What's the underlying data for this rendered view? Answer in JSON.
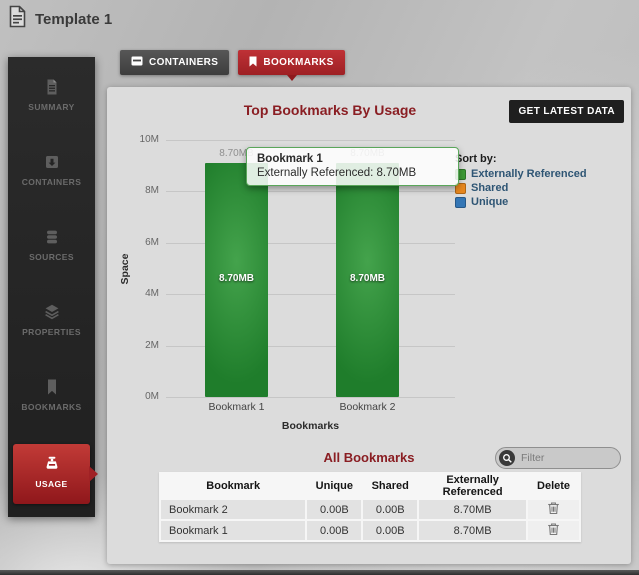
{
  "page_title": "Template 1",
  "tabs": [
    {
      "label": "CONTAINERS",
      "icon": "containers-icon",
      "active": false
    },
    {
      "label": "BOOKMARKS",
      "icon": "bookmark-icon",
      "active": true
    }
  ],
  "sidebar": {
    "items": [
      {
        "label": "SUMMARY",
        "icon": "document-icon",
        "active": false
      },
      {
        "label": "CONTAINERS",
        "icon": "archive-icon",
        "active": false
      },
      {
        "label": "SOURCES",
        "icon": "database-icon",
        "active": false
      },
      {
        "label": "PROPERTIES",
        "icon": "layers-icon",
        "active": false
      },
      {
        "label": "BOOKMARKS",
        "icon": "bookmark-icon",
        "active": false
      },
      {
        "label": "USAGE",
        "icon": "scale-icon",
        "active": true
      }
    ]
  },
  "usage": {
    "chart_title": "Top Bookmarks By Usage",
    "get_latest_label": "GET LATEST DATA",
    "table_title": "All Bookmarks",
    "filter_placeholder": "Filter"
  },
  "chart_data": {
    "type": "bar",
    "title": "Top Bookmarks By Usage",
    "categories": [
      "Bookmark 1",
      "Bookmark 2"
    ],
    "series": [
      {
        "name": "Externally Referenced",
        "color": "#2f8f3a",
        "values": [
          9120000,
          9120000
        ],
        "value_labels": [
          "8.70MB",
          "8.70MB"
        ]
      }
    ],
    "xlabel": "Bookmarks",
    "ylabel": "Space",
    "ylim": [
      0,
      10000000
    ],
    "yticks": [
      {
        "value": 0,
        "label": "0M"
      },
      {
        "value": 2000000,
        "label": "2M"
      },
      {
        "value": 4000000,
        "label": "4M"
      },
      {
        "value": 6000000,
        "label": "6M"
      },
      {
        "value": 8000000,
        "label": "8M"
      },
      {
        "value": 10000000,
        "label": "10M"
      }
    ],
    "grid": true,
    "legend_position": "right"
  },
  "tooltip": {
    "title": "Bookmark 1",
    "text": "Externally Referenced: 8.70MB"
  },
  "legend": {
    "title": "Sort by:",
    "items": [
      {
        "label": "Externally Referenced",
        "color": "#3d9b35"
      },
      {
        "label": "Shared",
        "color": "#e8881f"
      },
      {
        "label": "Unique",
        "color": "#3476b5"
      }
    ]
  },
  "table": {
    "headers": [
      "Bookmark",
      "Unique",
      "Shared",
      "Externally Referenced",
      "Delete"
    ],
    "rows": [
      {
        "bookmark": "Bookmark 2",
        "unique": "0.00B",
        "shared": "0.00B",
        "externally_referenced": "8.70MB"
      },
      {
        "bookmark": "Bookmark 1",
        "unique": "0.00B",
        "shared": "0.00B",
        "externally_referenced": "8.70MB"
      }
    ]
  },
  "colors": {
    "accent_red": "#b2282c",
    "title_maroon": "#8a1e23",
    "bar_green": "#2f8f3a"
  }
}
